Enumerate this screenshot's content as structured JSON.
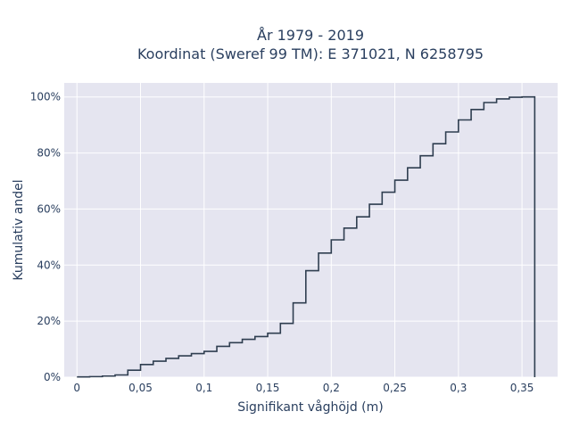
{
  "chart_data": {
    "type": "line",
    "subtype": "cumulative-step",
    "title_line1": "År 1979 - 2019",
    "title_line2": "Koordinat (Sweref 99 TM): E 371021, N 6258795",
    "xlabel": "Signifikant våghöjd (m)",
    "ylabel": "Kumulativ andel",
    "xlim": [
      -0.01,
      0.378
    ],
    "ylim": [
      0,
      1.05
    ],
    "x_ticks": [
      0,
      0.05,
      0.1,
      0.15,
      0.2,
      0.25,
      0.3,
      0.35
    ],
    "x_tick_labels": [
      "0",
      "0,05",
      "0,1",
      "0,15",
      "0,2",
      "0,25",
      "0,3",
      "0,35"
    ],
    "y_ticks": [
      0,
      0.2,
      0.4,
      0.6,
      0.8,
      1.0
    ],
    "y_tick_labels": [
      "0%",
      "20%",
      "40%",
      "60%",
      "80%",
      "100%"
    ],
    "grid": true,
    "plot_background": "#e5e5f0",
    "line_color": "#2f3e50",
    "x": [
      0,
      0.01,
      0.02,
      0.03,
      0.04,
      0.05,
      0.06,
      0.07,
      0.08,
      0.09,
      0.1,
      0.11,
      0.12,
      0.13,
      0.14,
      0.15,
      0.16,
      0.17,
      0.18,
      0.19,
      0.2,
      0.21,
      0.22,
      0.23,
      0.24,
      0.25,
      0.26,
      0.27,
      0.28,
      0.29,
      0.3,
      0.31,
      0.32,
      0.33,
      0.34,
      0.35,
      0.36
    ],
    "y": [
      0.001,
      0.002,
      0.004,
      0.008,
      0.025,
      0.045,
      0.057,
      0.067,
      0.076,
      0.084,
      0.092,
      0.11,
      0.123,
      0.135,
      0.145,
      0.157,
      0.192,
      0.265,
      0.38,
      0.443,
      0.49,
      0.532,
      0.572,
      0.617,
      0.66,
      0.703,
      0.747,
      0.79,
      0.833,
      0.875,
      0.918,
      0.955,
      0.98,
      0.993,
      0.999,
      1.0,
      0.0
    ]
  }
}
